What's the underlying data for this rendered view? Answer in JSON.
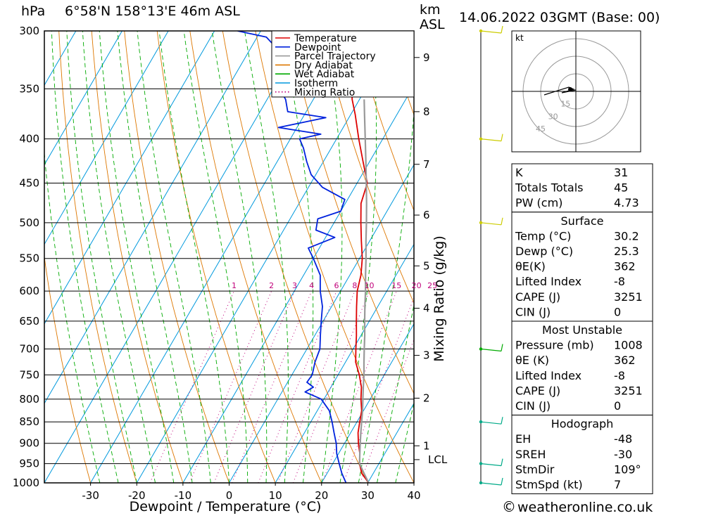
{
  "header": {
    "location": "6°58'N  158°13'E  46m  ASL",
    "datetime": "14.06.2022  03GMT  (Base: 00)",
    "hpa_unit": "hPa",
    "km_unit": "km",
    "asl_unit": "ASL"
  },
  "chart_data": {
    "type": "line",
    "title": "6°58'N 158°13'E 46m ASL",
    "xlabel": "Dewpoint / Temperature (°C)",
    "ylabel": "hPa",
    "right_label": "Mixing Ratio (g/kg)",
    "xlim": [
      -40,
      40
    ],
    "ylim": [
      1000,
      300
    ],
    "y_scale": "log",
    "grid": true,
    "legend_position": "top-right",
    "pressure_ticks": [
      300,
      350,
      400,
      450,
      500,
      550,
      600,
      650,
      700,
      750,
      800,
      850,
      900,
      950,
      1000
    ],
    "temp_ticks": [
      -30,
      -20,
      -10,
      0,
      10,
      20,
      30,
      40
    ],
    "km_ticks": [
      {
        "label": "1",
        "p": 906
      },
      {
        "label": "2",
        "p": 798
      },
      {
        "label": "3",
        "p": 712
      },
      {
        "label": "4",
        "p": 628
      },
      {
        "label": "5",
        "p": 561
      },
      {
        "label": "6",
        "p": 490
      },
      {
        "label": "7",
        "p": 428
      },
      {
        "label": "8",
        "p": 372
      },
      {
        "label": "9",
        "p": 322
      }
    ],
    "lcl": {
      "label": "LCL",
      "p": 940
    },
    "mixing_ratio_labels": [
      "1",
      "2",
      "3",
      "4",
      "6",
      "8",
      "10",
      "15",
      "20",
      "25"
    ],
    "legend": [
      {
        "name": "Temperature",
        "color": "#dd0000",
        "style": "solid"
      },
      {
        "name": "Dewpoint",
        "color": "#0022dd",
        "style": "solid"
      },
      {
        "name": "Parcel Trajectory",
        "color": "#999999",
        "style": "solid"
      },
      {
        "name": "Dry Adiabat",
        "color": "#dd7700",
        "style": "solid"
      },
      {
        "name": "Wet Adiabat",
        "color": "#00aa00",
        "style": "solid"
      },
      {
        "name": "Isotherm",
        "color": "#0099dd",
        "style": "solid"
      },
      {
        "name": "Mixing Ratio",
        "color": "#c0007a",
        "style": "dotted"
      }
    ],
    "series": [
      {
        "name": "Temperature",
        "points": [
          [
            1000,
            30.2
          ],
          [
            975,
            27.5
          ],
          [
            950,
            25.8
          ],
          [
            925,
            24.6
          ],
          [
            900,
            23.0
          ],
          [
            875,
            21.6
          ],
          [
            850,
            20.6
          ],
          [
            825,
            19.6
          ],
          [
            800,
            18.0
          ],
          [
            775,
            16.6
          ],
          [
            750,
            14.6
          ],
          [
            725,
            12.2
          ],
          [
            700,
            10.6
          ],
          [
            675,
            9.0
          ],
          [
            650,
            7.2
          ],
          [
            625,
            5.4
          ],
          [
            600,
            3.6
          ],
          [
            575,
            2.4
          ],
          [
            550,
            0.6
          ],
          [
            525,
            -1.8
          ],
          [
            500,
            -4.2
          ],
          [
            475,
            -6.6
          ],
          [
            450,
            -7.8
          ],
          [
            425,
            -11.4
          ],
          [
            400,
            -15.2
          ],
          [
            375,
            -19.0
          ],
          [
            360,
            -21.6
          ],
          [
            340,
            -24.4
          ],
          [
            320,
            -28.2
          ],
          [
            300,
            -32.4
          ]
        ]
      },
      {
        "name": "Dewpoint",
        "points": [
          [
            1000,
            25.3
          ],
          [
            975,
            23.2
          ],
          [
            950,
            21.4
          ],
          [
            925,
            19.6
          ],
          [
            900,
            18.2
          ],
          [
            875,
            16.4
          ],
          [
            850,
            14.6
          ],
          [
            825,
            12.6
          ],
          [
            800,
            9.4
          ],
          [
            785,
            5.0
          ],
          [
            775,
            6.2
          ],
          [
            765,
            4.2
          ],
          [
            750,
            4.4
          ],
          [
            725,
            3.4
          ],
          [
            700,
            2.8
          ],
          [
            675,
            1.2
          ],
          [
            650,
            -0.4
          ],
          [
            625,
            -2.0
          ],
          [
            600,
            -4.4
          ],
          [
            575,
            -6.4
          ],
          [
            550,
            -10.0
          ],
          [
            535,
            -12.4
          ],
          [
            520,
            -8.0
          ],
          [
            510,
            -13.0
          ],
          [
            495,
            -14.0
          ],
          [
            485,
            -10.0
          ],
          [
            470,
            -10.6
          ],
          [
            455,
            -17.0
          ],
          [
            440,
            -21.0
          ],
          [
            425,
            -23.6
          ],
          [
            410,
            -26.0
          ],
          [
            400,
            -28.0
          ],
          [
            395,
            -24.0
          ],
          [
            388,
            -34.0
          ],
          [
            378,
            -25.0
          ],
          [
            372,
            -34.0
          ],
          [
            360,
            -36.0
          ],
          [
            345,
            -40.0
          ],
          [
            330,
            -42.0
          ],
          [
            315,
            -44.0
          ],
          [
            305,
            -48.0
          ],
          [
            300,
            -55.0
          ]
        ]
      },
      {
        "name": "Parcel Trajectory",
        "points": [
          [
            1000,
            30.2
          ],
          [
            975,
            28.0
          ],
          [
            950,
            25.8
          ],
          [
            925,
            24.6
          ],
          [
            900,
            23.4
          ],
          [
            875,
            22.2
          ],
          [
            850,
            21.0
          ],
          [
            825,
            19.8
          ],
          [
            800,
            18.4
          ],
          [
            775,
            17.0
          ],
          [
            750,
            15.6
          ],
          [
            725,
            14.0
          ],
          [
            700,
            12.4
          ],
          [
            675,
            10.8
          ],
          [
            650,
            9.0
          ],
          [
            625,
            7.2
          ],
          [
            600,
            5.4
          ],
          [
            575,
            3.4
          ],
          [
            550,
            1.4
          ],
          [
            525,
            -0.8
          ],
          [
            500,
            -3.0
          ],
          [
            475,
            -5.4
          ],
          [
            450,
            -8.0
          ],
          [
            425,
            -10.8
          ],
          [
            400,
            -13.8
          ],
          [
            375,
            -17.0
          ],
          [
            360,
            -19.0
          ]
        ]
      }
    ],
    "wind_barbs_pressure": [
      1000,
      950,
      850,
      700,
      500,
      400,
      300
    ]
  },
  "hodograph": {
    "unit": "kt",
    "ring_labels": [
      "15",
      "30",
      "45"
    ]
  },
  "tables": [
    {
      "title": "",
      "rows": [
        {
          "label": "K",
          "value": "31"
        },
        {
          "label": "Totals Totals",
          "value": "45"
        },
        {
          "label": "PW (cm)",
          "value": "4.73"
        }
      ]
    },
    {
      "title": "Surface",
      "rows": [
        {
          "label": "Temp (°C)",
          "value": "30.2"
        },
        {
          "label": "Dewp (°C)",
          "value": "25.3"
        },
        {
          "label": "θE(K)",
          "value": "362"
        },
        {
          "label": "Lifted Index",
          "value": "-8"
        },
        {
          "label": "CAPE (J)",
          "value": "3251"
        },
        {
          "label": "CIN (J)",
          "value": "0"
        }
      ]
    },
    {
      "title": "Most Unstable",
      "rows": [
        {
          "label": "Pressure (mb)",
          "value": "1008"
        },
        {
          "label": "θE (K)",
          "value": "362"
        },
        {
          "label": "Lifted Index",
          "value": "-8"
        },
        {
          "label": "CAPE (J)",
          "value": "3251"
        },
        {
          "label": "CIN (J)",
          "value": "0"
        }
      ]
    },
    {
      "title": "Hodograph",
      "rows": [
        {
          "label": "EH",
          "value": "-48"
        },
        {
          "label": "SREH",
          "value": "-30"
        },
        {
          "label": "StmDir",
          "value": "109°"
        },
        {
          "label": "StmSpd (kt)",
          "value": "7"
        }
      ]
    }
  ],
  "footer": {
    "copyright_symbol": "©",
    "site": "weatheronline.co.uk"
  }
}
